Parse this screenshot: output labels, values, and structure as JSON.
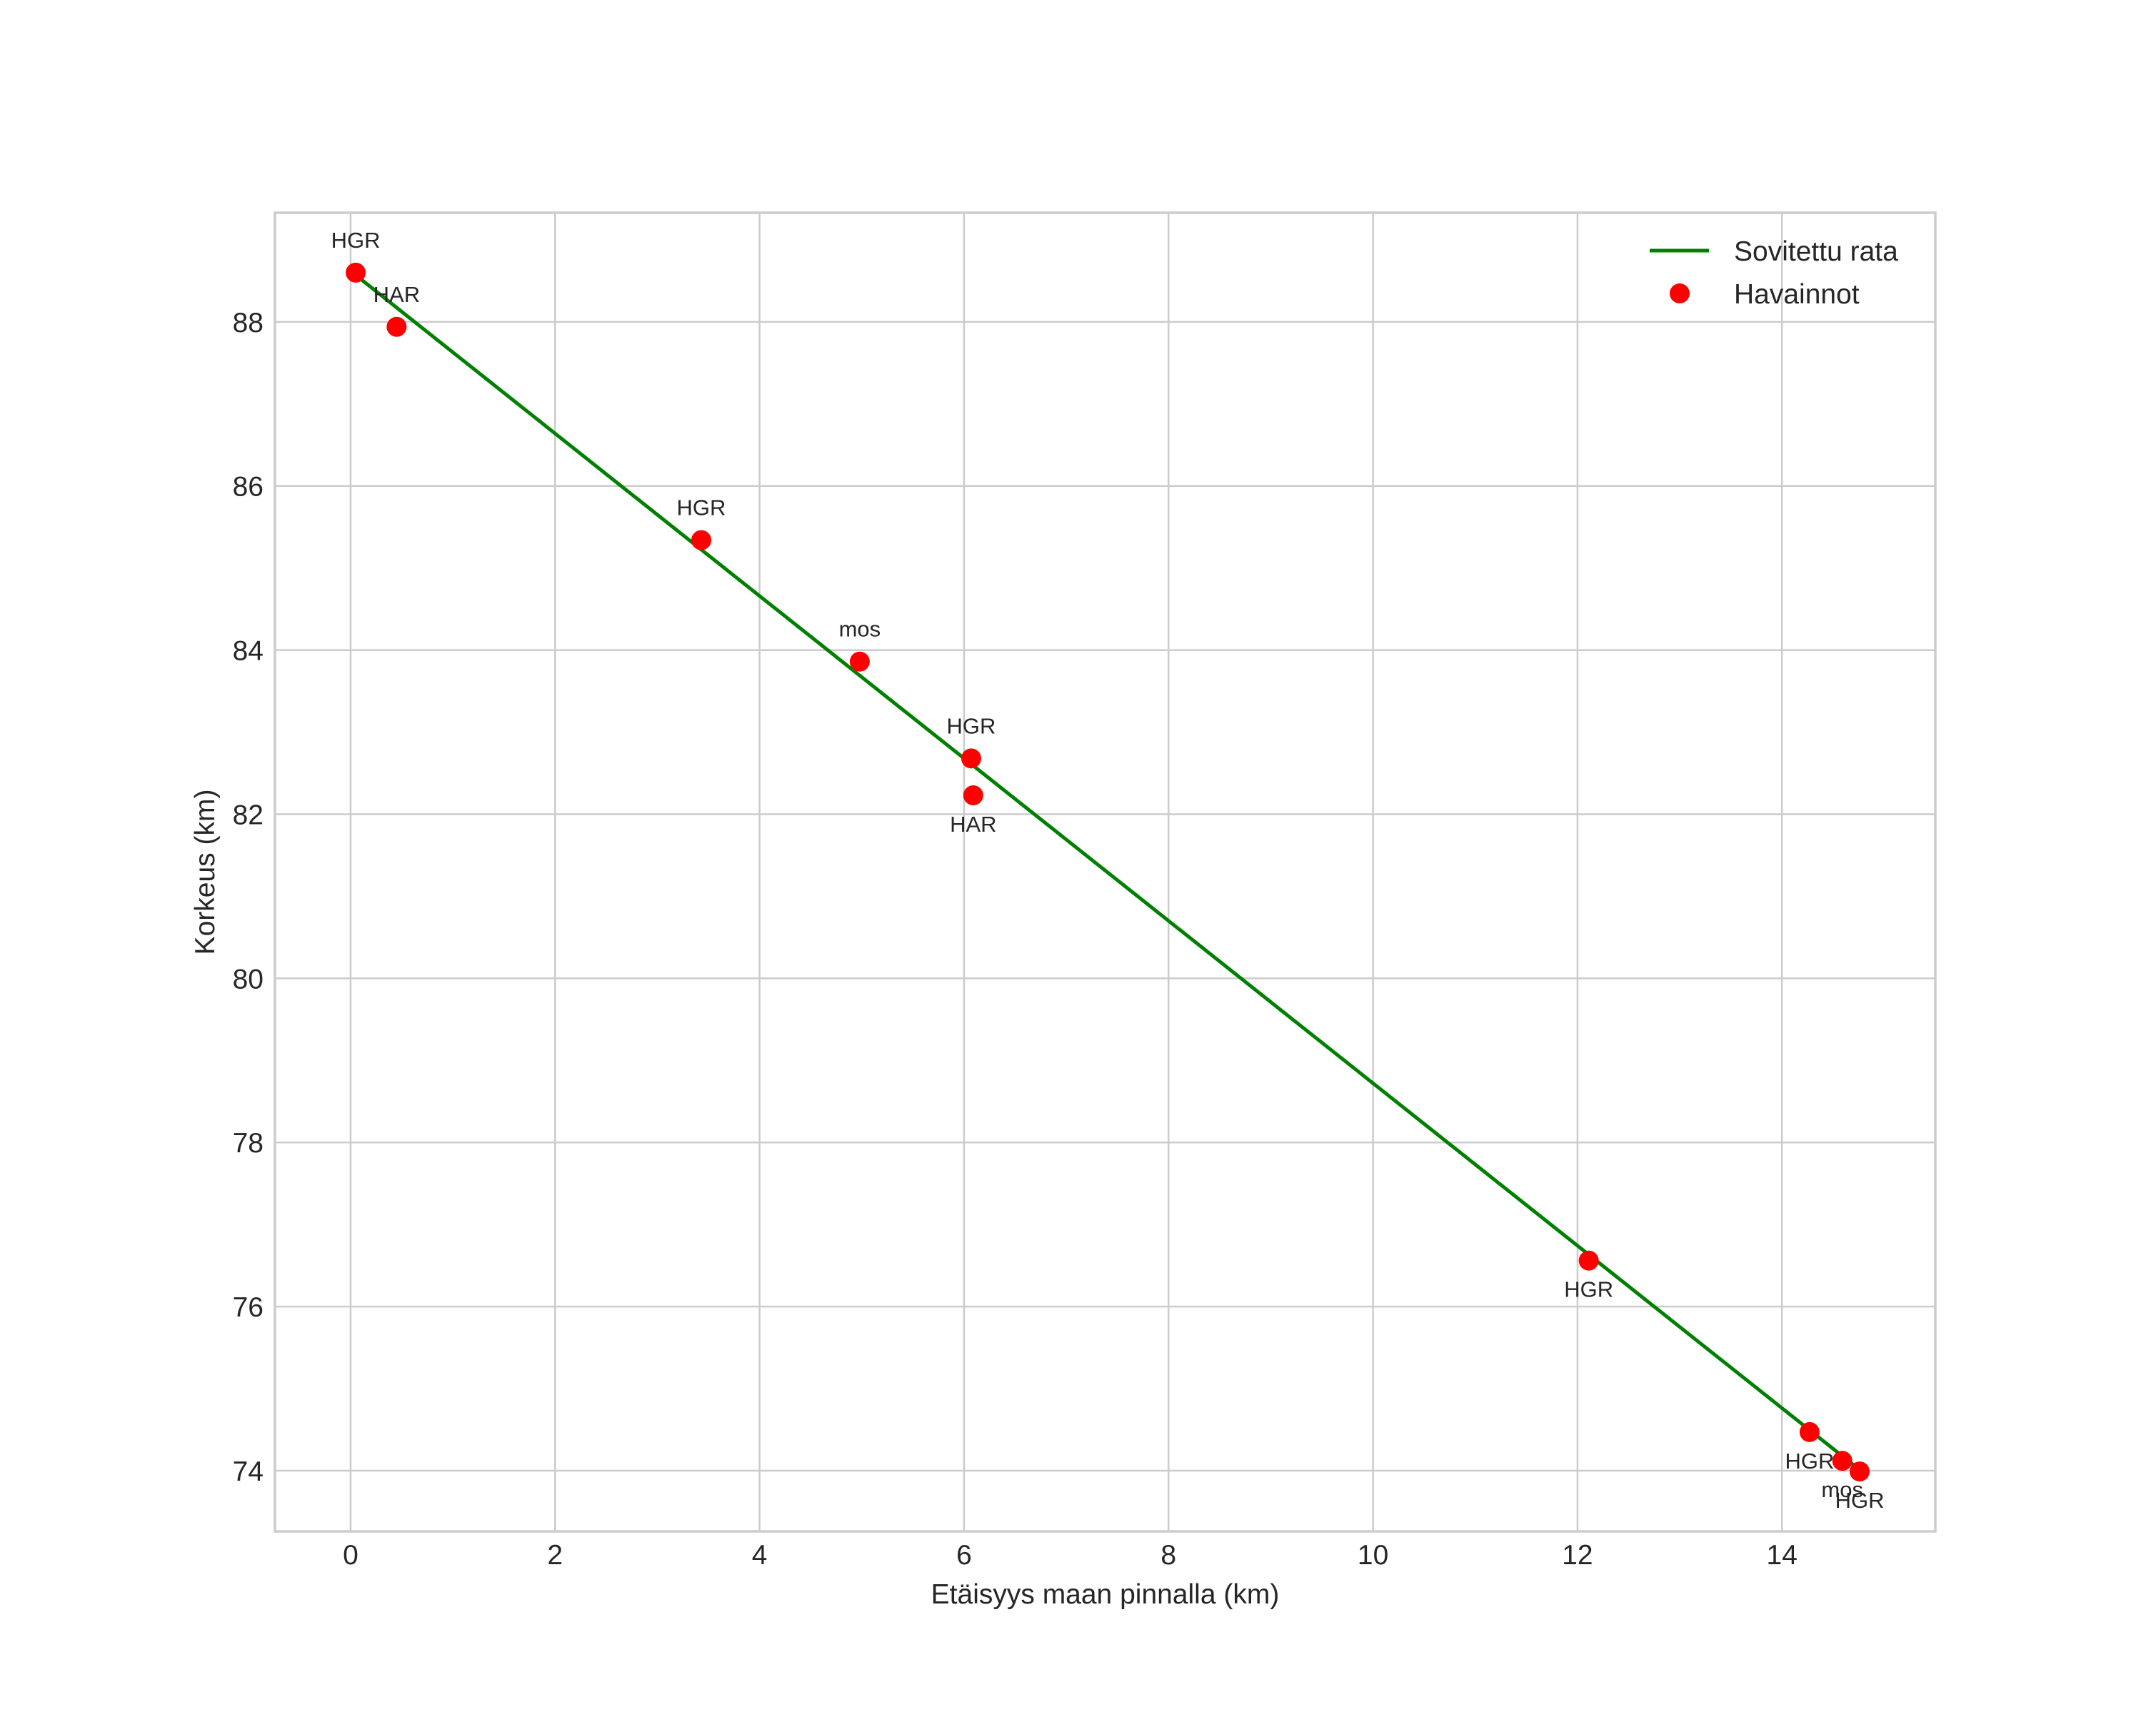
{
  "chart_data": {
    "type": "scatter",
    "title": "",
    "xlabel": "Etäisyys maan pinnalla (km)",
    "ylabel": "Korkeus (km)",
    "xlim": [
      -0.74,
      15.5
    ],
    "ylim": [
      73.26,
      89.33
    ],
    "xticks": [
      0,
      2,
      4,
      6,
      8,
      10,
      12,
      14
    ],
    "yticks": [
      74,
      76,
      78,
      80,
      82,
      84,
      86,
      88
    ],
    "grid": true,
    "legend": {
      "position": "upper right",
      "entries": [
        {
          "label": "Sovitettu rata",
          "type": "line",
          "color": "#008000"
        },
        {
          "label": "Havainnot",
          "type": "marker",
          "color": "#ff0000"
        }
      ]
    },
    "series": [
      {
        "name": "Sovitettu rata",
        "type": "line",
        "color": "#008000",
        "x": [
          0.05,
          14.76
        ],
        "y": [
          88.57,
          74.01
        ]
      },
      {
        "name": "Havainnot",
        "type": "scatter",
        "color": "#ff0000",
        "points": [
          {
            "x": 0.05,
            "y": 88.6,
            "label": "HGR",
            "label_pos": "above"
          },
          {
            "x": 0.45,
            "y": 87.94,
            "label": "HAR",
            "label_pos": "above"
          },
          {
            "x": 3.43,
            "y": 85.34,
            "label": "HGR",
            "label_pos": "above"
          },
          {
            "x": 4.98,
            "y": 83.86,
            "label": "mos",
            "label_pos": "above"
          },
          {
            "x": 6.07,
            "y": 82.68,
            "label": "HGR",
            "label_pos": "above"
          },
          {
            "x": 6.09,
            "y": 82.23,
            "label": "HAR",
            "label_pos": "below"
          },
          {
            "x": 12.11,
            "y": 76.56,
            "label": "HGR",
            "label_pos": "below"
          },
          {
            "x": 14.27,
            "y": 74.47,
            "label": "HGR",
            "label_pos": "below"
          },
          {
            "x": 14.59,
            "y": 74.12,
            "label": "mos",
            "label_pos": "below"
          },
          {
            "x": 14.76,
            "y": 73.99,
            "label": "HGR",
            "label_pos": "below"
          }
        ]
      }
    ]
  }
}
